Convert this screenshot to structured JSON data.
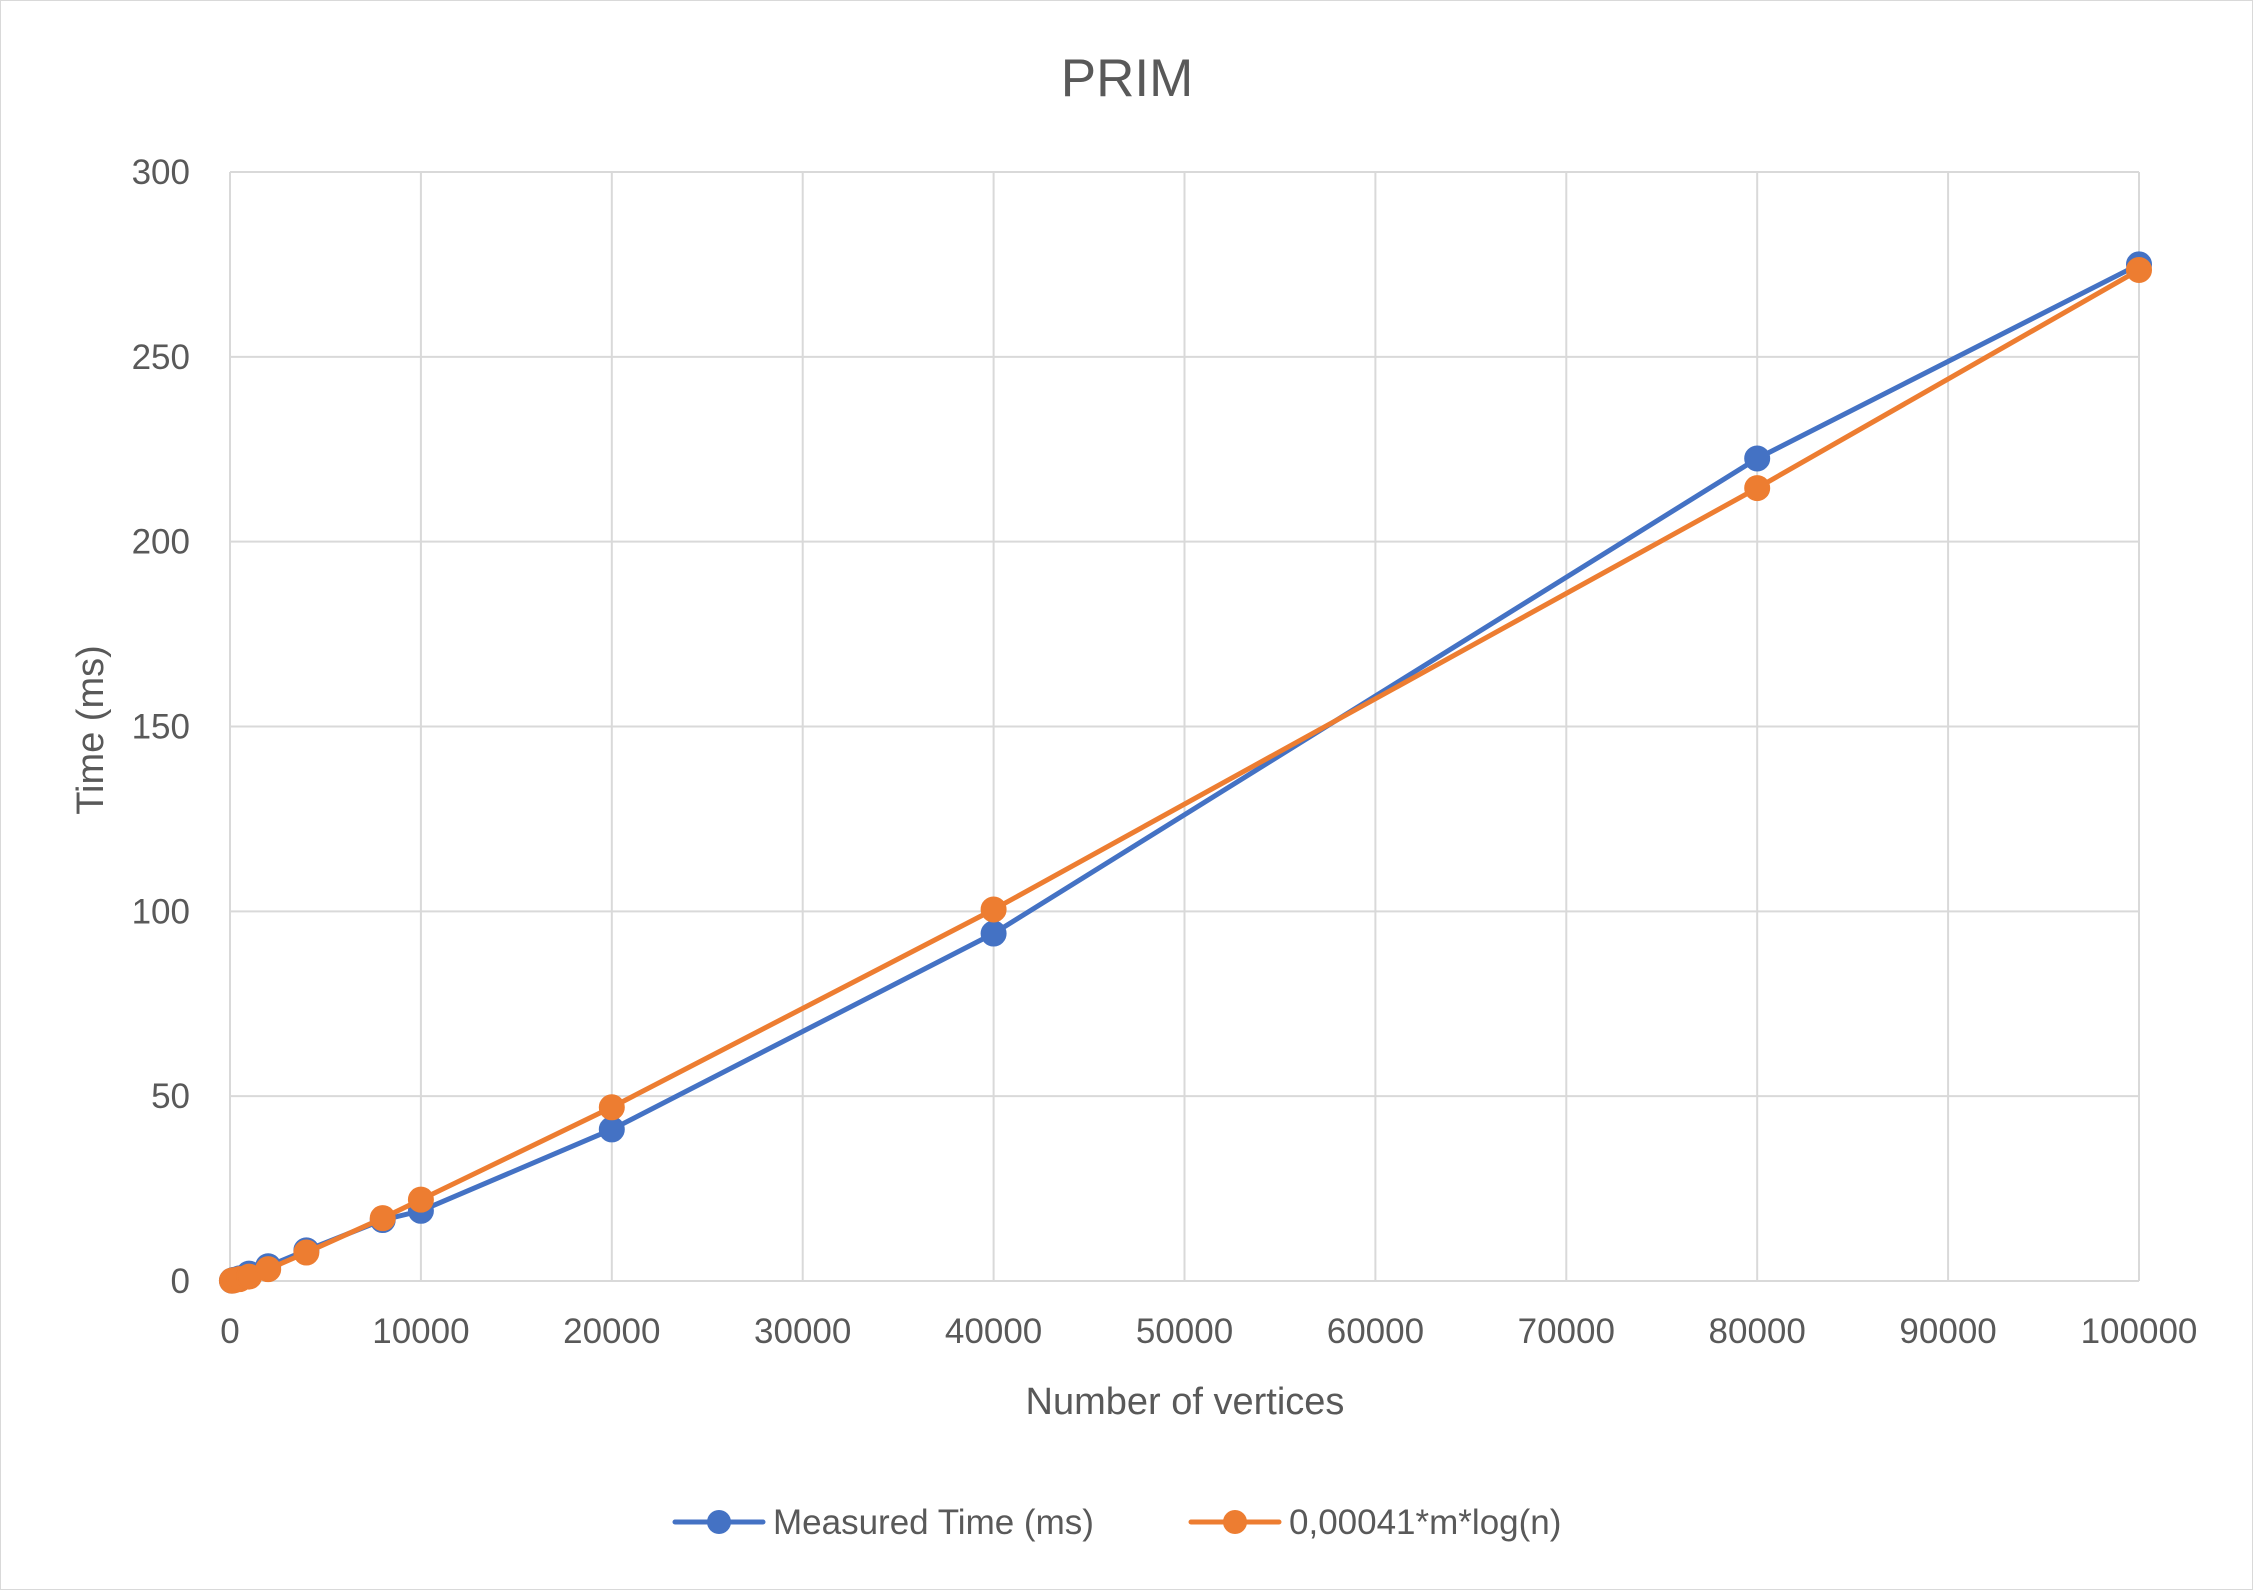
{
  "chart_data": {
    "type": "scatter",
    "title": "PRIM",
    "xlabel": "Number of vertices",
    "ylabel": "Time (ms)",
    "xlim": [
      0,
      100000
    ],
    "ylim": [
      0,
      300
    ],
    "x_ticks": [
      0,
      10000,
      20000,
      30000,
      40000,
      50000,
      60000,
      70000,
      80000,
      90000,
      100000
    ],
    "y_ticks": [
      0,
      50,
      100,
      150,
      200,
      250,
      300
    ],
    "grid": true,
    "legend_position": "bottom",
    "lines_connect_points": true,
    "series": [
      {
        "name": "Measured Time (ms)",
        "color": "#4472C4",
        "points": [
          {
            "x": 100,
            "y": 0.1
          },
          {
            "x": 200,
            "y": 0.3
          },
          {
            "x": 500,
            "y": 0.7
          },
          {
            "x": 1000,
            "y": 2
          },
          {
            "x": 2000,
            "y": 4
          },
          {
            "x": 4000,
            "y": 8.3
          },
          {
            "x": 8000,
            "y": 16.5
          },
          {
            "x": 10000,
            "y": 19
          },
          {
            "x": 20000,
            "y": 41
          },
          {
            "x": 40000,
            "y": 94
          },
          {
            "x": 80000,
            "y": 222.5
          },
          {
            "x": 100000,
            "y": 275
          }
        ]
      },
      {
        "name": "0,00041*m*log(n)",
        "color": "#ED7D31",
        "points": [
          {
            "x": 100,
            "y": 0.1
          },
          {
            "x": 200,
            "y": 0.2
          },
          {
            "x": 500,
            "y": 0.5
          },
          {
            "x": 1000,
            "y": 1.2
          },
          {
            "x": 2000,
            "y": 3.2
          },
          {
            "x": 4000,
            "y": 7.7
          },
          {
            "x": 8000,
            "y": 17
          },
          {
            "x": 10000,
            "y": 22
          },
          {
            "x": 20000,
            "y": 47
          },
          {
            "x": 40000,
            "y": 100.5
          },
          {
            "x": 80000,
            "y": 214.5
          },
          {
            "x": 100000,
            "y": 273.5
          }
        ]
      }
    ]
  }
}
